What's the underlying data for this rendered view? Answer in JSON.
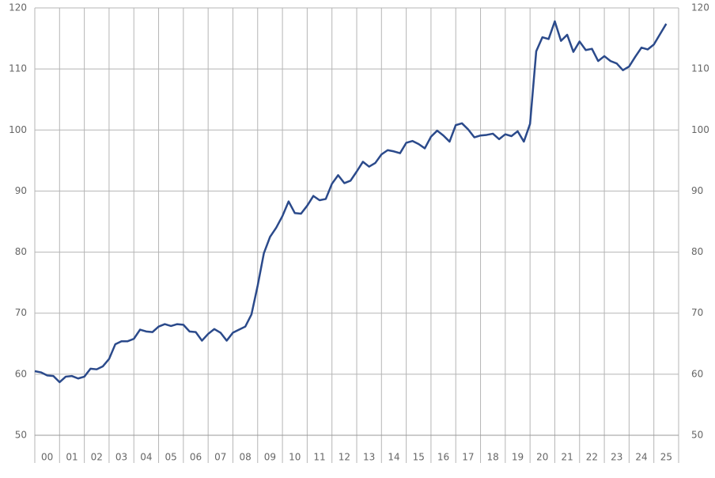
{
  "chart_data": {
    "type": "line",
    "x": [
      2000,
      2000.25,
      2000.5,
      2000.75,
      2001,
      2001.25,
      2001.5,
      2001.75,
      2002,
      2002.25,
      2002.5,
      2002.75,
      2003,
      2003.25,
      2003.5,
      2003.75,
      2004,
      2004.25,
      2004.5,
      2004.75,
      2005,
      2005.25,
      2005.5,
      2005.75,
      2006,
      2006.25,
      2006.5,
      2006.75,
      2007,
      2007.25,
      2007.5,
      2007.75,
      2008,
      2008.25,
      2008.5,
      2008.75,
      2009,
      2009.25,
      2009.5,
      2009.75,
      2010,
      2010.25,
      2010.5,
      2010.75,
      2011,
      2011.25,
      2011.5,
      2011.75,
      2012,
      2012.25,
      2012.5,
      2012.75,
      2013,
      2013.25,
      2013.5,
      2013.75,
      2014,
      2014.25,
      2014.5,
      2014.75,
      2015,
      2015.25,
      2015.5,
      2015.75,
      2016,
      2016.25,
      2016.5,
      2016.75,
      2017,
      2017.25,
      2017.5,
      2017.75,
      2018,
      2018.25,
      2018.5,
      2018.75,
      2019,
      2019.25,
      2019.5,
      2019.75,
      2020,
      2020.25,
      2020.5,
      2020.75,
      2021,
      2021.25,
      2021.5,
      2021.75,
      2022,
      2022.25,
      2022.5,
      2022.75,
      2023,
      2023.25,
      2023.5,
      2023.75,
      2024,
      2024.25,
      2024.5,
      2024.75,
      2025,
      2025.25,
      2025.5
    ],
    "series": [
      {
        "color": "#2b4a8b",
        "values": [
          60.5,
          60.3,
          59.8,
          59.7,
          58.7,
          59.6,
          59.7,
          59.3,
          59.6,
          60.9,
          60.8,
          61.3,
          62.5,
          64.9,
          65.4,
          65.4,
          65.8,
          67.3,
          67.0,
          66.9,
          67.8,
          68.2,
          67.9,
          68.2,
          68.1,
          67.0,
          66.9,
          65.5,
          66.6,
          67.4,
          66.8,
          65.5,
          66.8,
          67.3,
          67.8,
          69.8,
          74.5,
          79.8,
          82.5,
          84.0,
          85.9,
          88.3,
          86.4,
          86.3,
          87.6,
          89.2,
          88.5,
          88.7,
          91.2,
          92.6,
          91.3,
          91.7,
          93.2,
          94.8,
          94.0,
          94.6,
          96.0,
          96.7,
          96.5,
          96.2,
          97.9,
          98.2,
          97.7,
          97.0,
          98.9,
          99.9,
          99.1,
          98.1,
          100.8,
          101.1,
          100.1,
          98.8,
          99.1,
          99.2,
          99.4,
          98.5,
          99.3,
          99.0,
          99.8,
          98.1,
          101.0,
          112.9,
          115.2,
          114.9,
          117.8,
          114.6,
          115.6,
          112.8,
          114.5,
          113.1,
          113.3,
          111.3,
          112.1,
          111.3,
          110.9,
          109.8,
          110.4,
          112.0,
          113.5,
          113.2,
          114.0,
          115.7,
          117.4
        ]
      }
    ],
    "xlim": [
      2000,
      2026
    ],
    "xticks": [
      {
        "value": 2000.5,
        "label": "00"
      },
      {
        "value": 2001.5,
        "label": "01"
      },
      {
        "value": 2002.5,
        "label": "02"
      },
      {
        "value": 2003.5,
        "label": "03"
      },
      {
        "value": 2004.5,
        "label": "04"
      },
      {
        "value": 2005.5,
        "label": "05"
      },
      {
        "value": 2006.5,
        "label": "06"
      },
      {
        "value": 2007.5,
        "label": "07"
      },
      {
        "value": 2008.5,
        "label": "08"
      },
      {
        "value": 2009.5,
        "label": "09"
      },
      {
        "value": 2010.5,
        "label": "10"
      },
      {
        "value": 2011.5,
        "label": "11"
      },
      {
        "value": 2012.5,
        "label": "12"
      },
      {
        "value": 2013.5,
        "label": "13"
      },
      {
        "value": 2014.5,
        "label": "14"
      },
      {
        "value": 2015.5,
        "label": "15"
      },
      {
        "value": 2016.5,
        "label": "16"
      },
      {
        "value": 2017.5,
        "label": "17"
      },
      {
        "value": 2018.5,
        "label": "18"
      },
      {
        "value": 2019.5,
        "label": "19"
      },
      {
        "value": 2020.5,
        "label": "20"
      },
      {
        "value": 2021.5,
        "label": "21"
      },
      {
        "value": 2022.5,
        "label": "22"
      },
      {
        "value": 2023.5,
        "label": "23"
      },
      {
        "value": 2024.5,
        "label": "24"
      },
      {
        "value": 2025.5,
        "label": "25"
      }
    ],
    "ylim": [
      50,
      120
    ],
    "yticks": [
      50,
      60,
      70,
      80,
      90,
      100,
      110,
      120
    ],
    "y2lim": [
      50,
      120
    ],
    "y2ticks": [
      50,
      60,
      70,
      80,
      90,
      100,
      110,
      120
    ],
    "grid": true
  }
}
